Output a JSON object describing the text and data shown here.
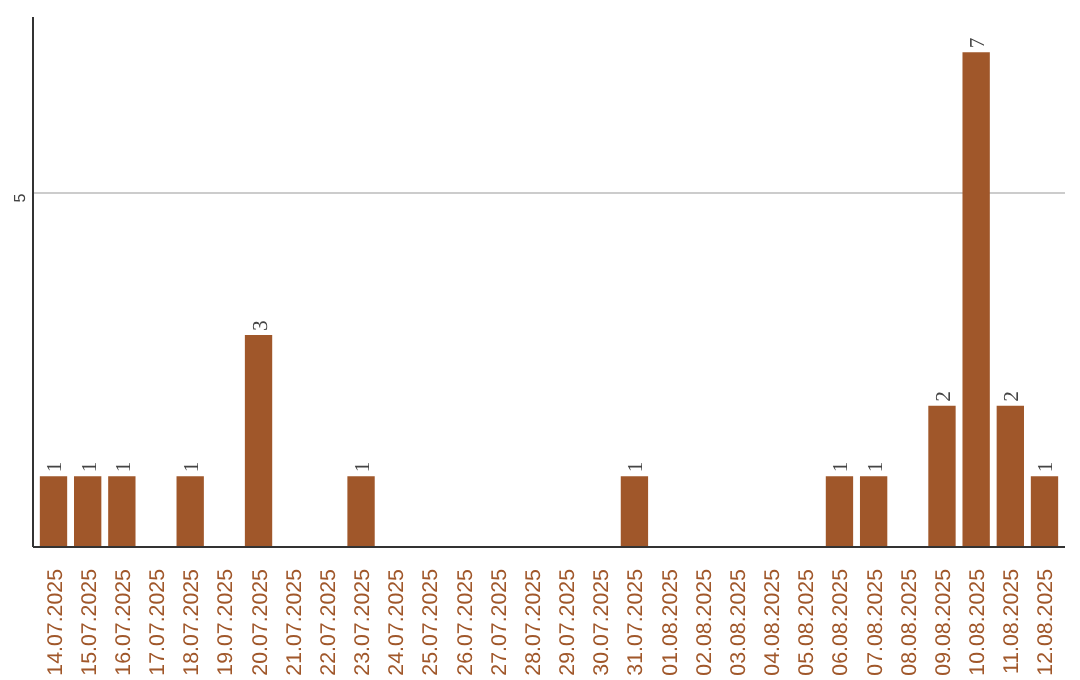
{
  "chart_data": {
    "type": "bar",
    "categories": [
      "14.07.2025",
      "15.07.2025",
      "16.07.2025",
      "17.07.2025",
      "18.07.2025",
      "19.07.2025",
      "20.07.2025",
      "21.07.2025",
      "22.07.2025",
      "23.07.2025",
      "24.07.2025",
      "25.07.2025",
      "26.07.2025",
      "27.07.2025",
      "28.07.2025",
      "29.07.2025",
      "30.07.2025",
      "31.07.2025",
      "01.08.2025",
      "02.08.2025",
      "03.08.2025",
      "04.08.2025",
      "05.08.2025",
      "06.08.2025",
      "07.08.2025",
      "08.08.2025",
      "09.08.2025",
      "10.08.2025",
      "11.08.2025",
      "12.08.2025"
    ],
    "values": [
      1,
      1,
      1,
      0,
      1,
      0,
      3,
      0,
      0,
      1,
      0,
      0,
      0,
      0,
      0,
      0,
      0,
      1,
      0,
      0,
      0,
      0,
      0,
      1,
      1,
      0,
      2,
      7,
      2,
      1
    ],
    "value_labels": [
      "1",
      "1",
      "1",
      null,
      "1",
      null,
      "3",
      null,
      null,
      "1",
      null,
      null,
      null,
      null,
      null,
      null,
      null,
      "1",
      null,
      null,
      null,
      null,
      null,
      "1",
      "1",
      null,
      "2",
      "7",
      "2",
      "1"
    ],
    "color": "#a0572a",
    "ylim": [
      0,
      7.5
    ],
    "yticks": [
      5
    ],
    "grid": "y"
  }
}
